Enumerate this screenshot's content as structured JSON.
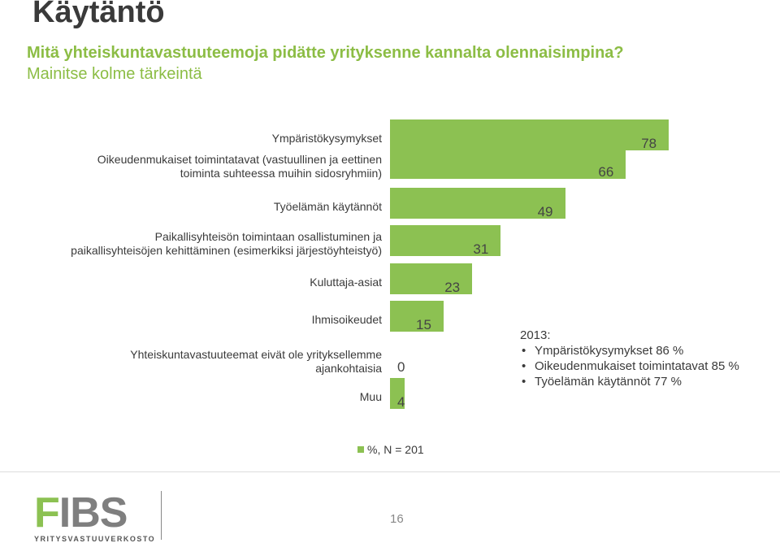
{
  "header": {
    "title": "Käytäntö",
    "question": "Mitä yhteiskuntavastuuteemoja pidätte yrityksenne kannalta olennaisimpina?",
    "subtitle": "Mainitse kolme tärkeintä"
  },
  "chart_data": {
    "type": "bar",
    "orientation": "horizontal",
    "categories": [
      [
        "Ympäristökysymykset"
      ],
      [
        "Oikeudenmukaiset toimintatavat (vastuullinen ja eettinen",
        "toiminta suhteessa muihin sidosryhmiin)"
      ],
      [
        "Työelämän käytännöt"
      ],
      [
        "Paikallisyhteisön toimintaan osallistuminen ja",
        "paikallisyhteisöjen kehittäminen (esimerkiksi järjestöyhteistyö)"
      ],
      [
        "Kuluttaja-asiat"
      ],
      [
        "Ihmisoikeudet"
      ],
      [
        "Yhteiskuntavastuuteemat eivät ole yrityksellemme",
        "ajankohtaisia"
      ],
      [
        "Muu"
      ]
    ],
    "values": [
      78,
      66,
      49,
      31,
      23,
      15,
      0,
      4
    ],
    "value_labels": [
      "78",
      "66",
      "49",
      "31",
      "23",
      "15",
      "0",
      "4"
    ],
    "color": "#8cc152",
    "legend": "%, N = 201",
    "legend_position": "bottom"
  },
  "note": {
    "heading": "2013:",
    "items": [
      "Ympäristökysymykset 86 %",
      "Oikeudenmukaiset toimintatavat 85 %",
      "Työelämän käytännöt 77 %"
    ]
  },
  "footer": {
    "logo_letter_f": "F",
    "logo_rest": "IBS",
    "logo_tagline": "YRITYSVASTUUVERKOSTO",
    "page_number": "16"
  }
}
